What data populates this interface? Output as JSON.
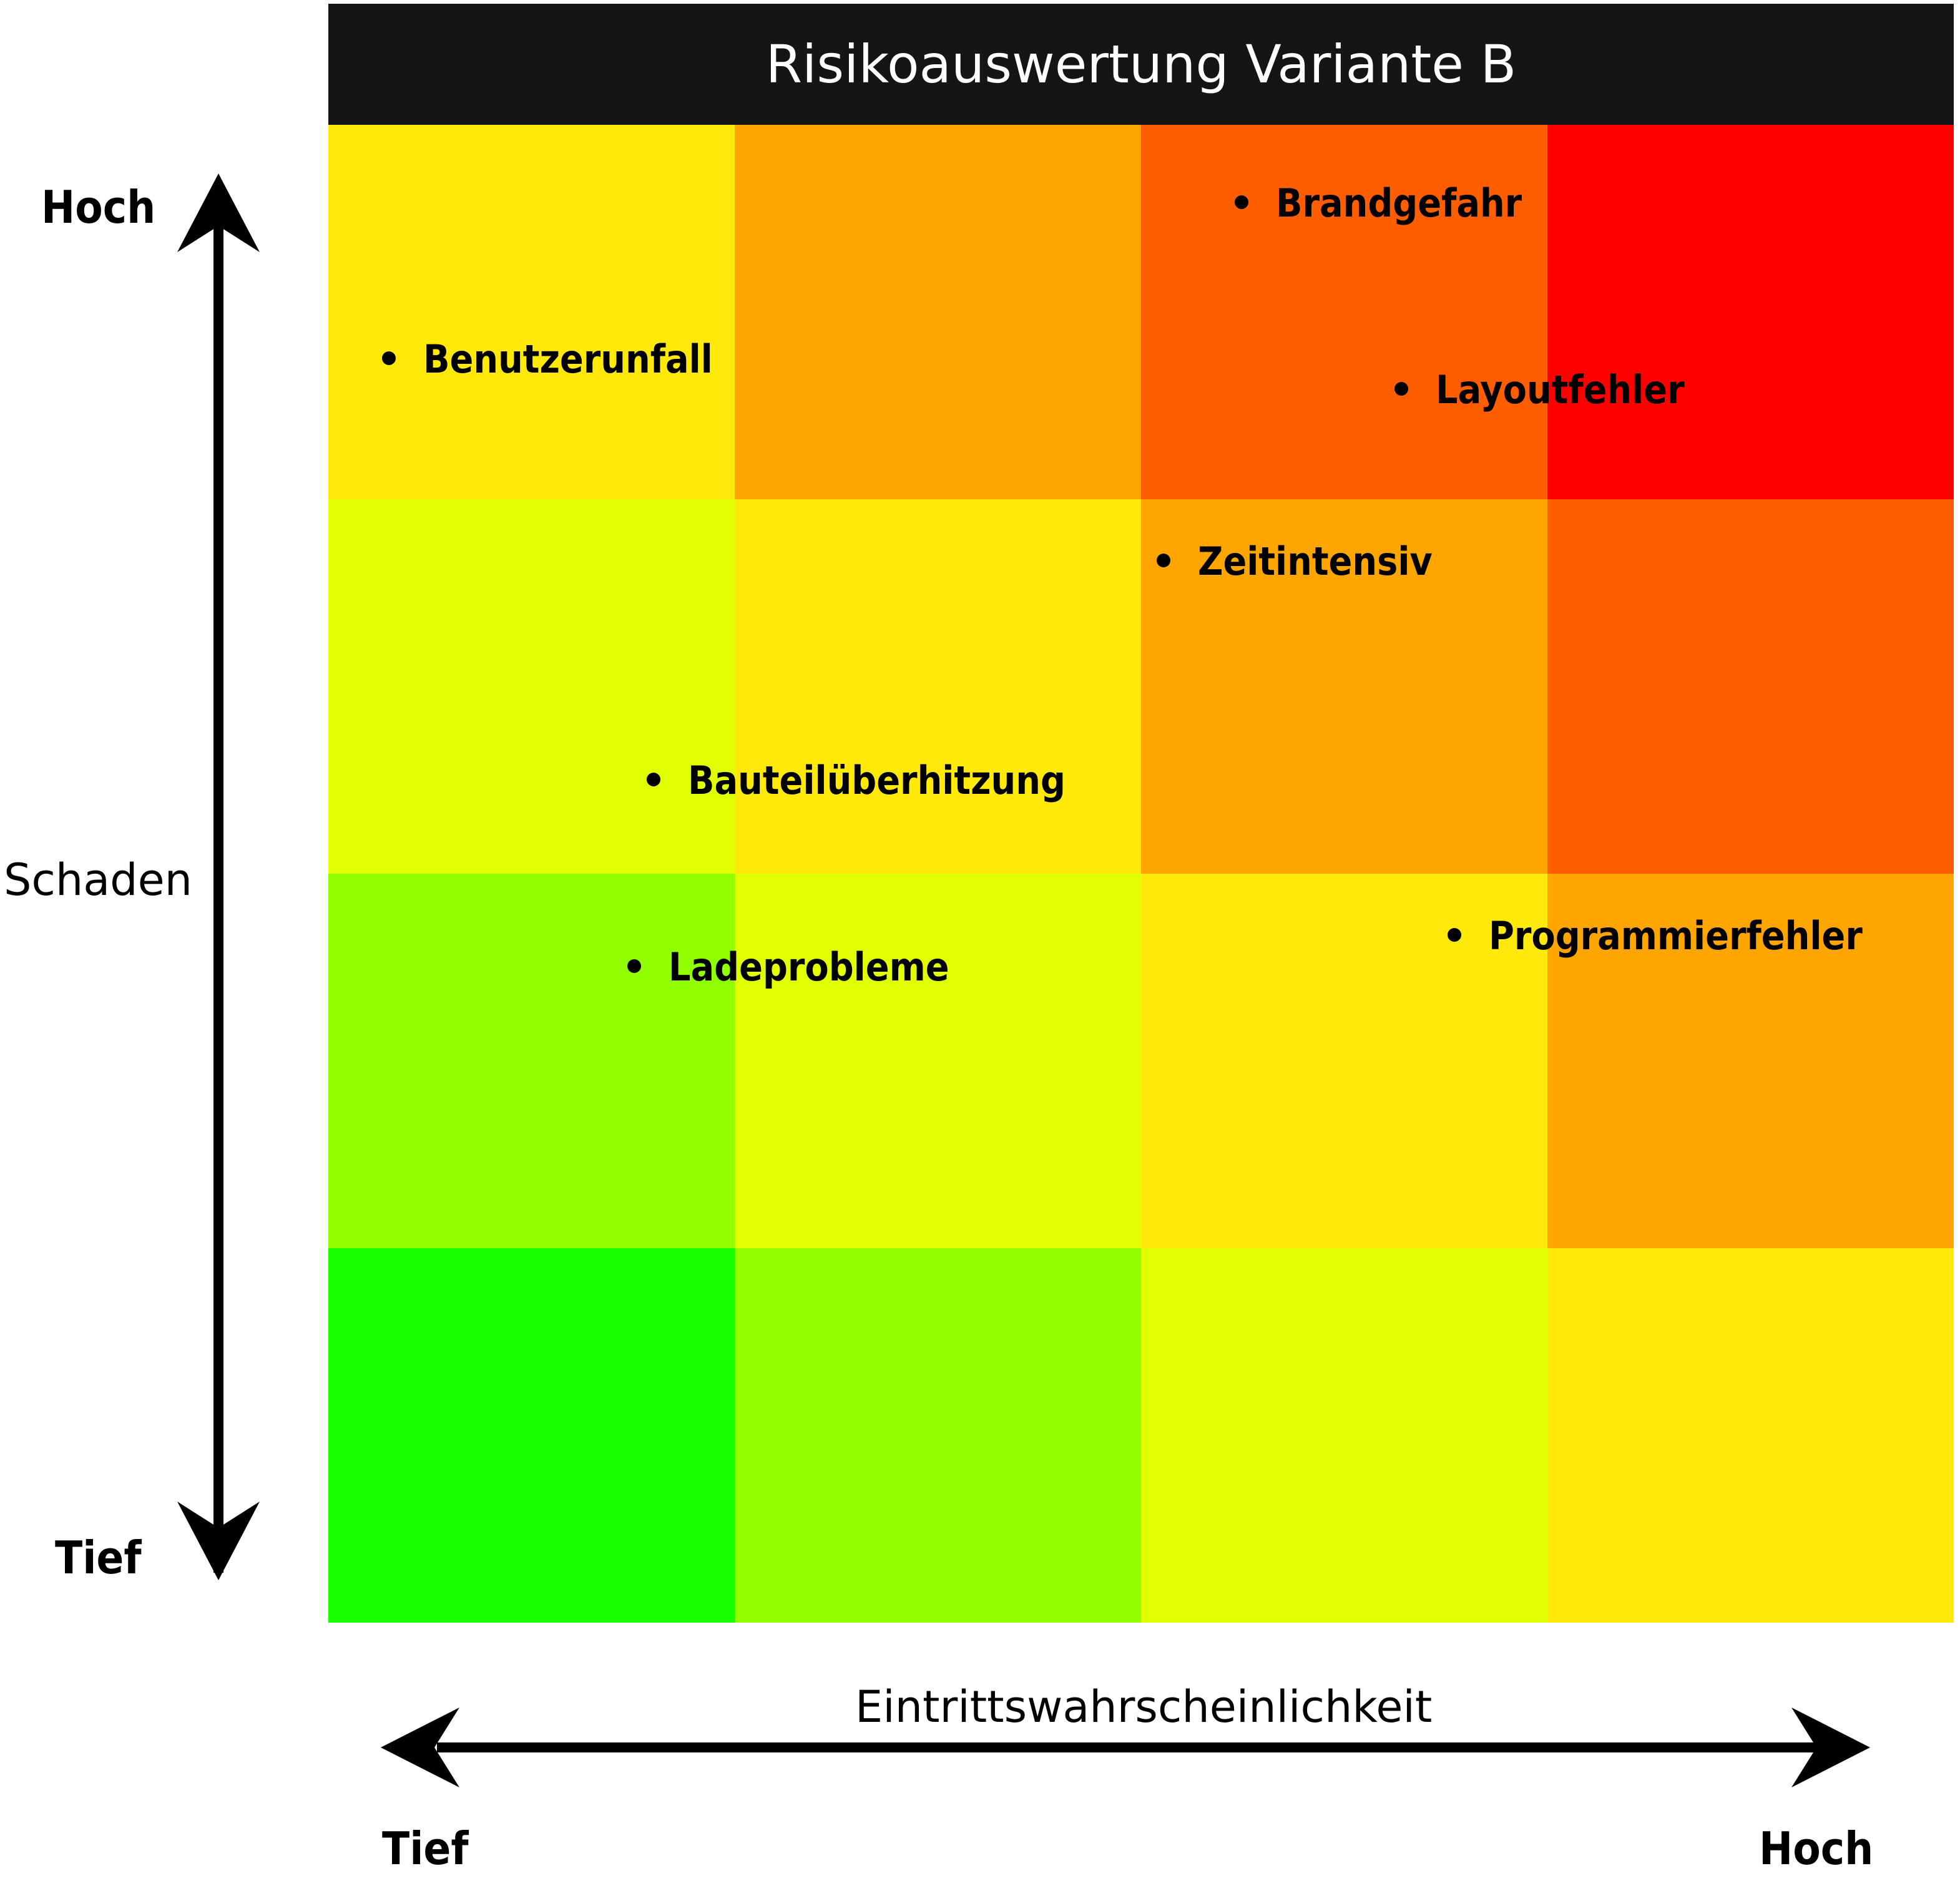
{
  "title": "Risikoauswertung Variante B",
  "y_axis": {
    "label": "Schaden",
    "high": "Hoch",
    "low": "Tief"
  },
  "x_axis": {
    "label": "Eintrittswahrscheinlichkeit",
    "low": "Tief",
    "high": "Hoch"
  },
  "matrix_colors": [
    [
      "#ffe90a",
      "#ffa500",
      "#ff5e00",
      "#ff0000"
    ],
    [
      "#e1ff00",
      "#ffe90a",
      "#ffa500",
      "#ff5e00"
    ],
    [
      "#92ff00",
      "#e1ff00",
      "#ffe90a",
      "#ffa500"
    ],
    [
      "#18ff00",
      "#92ff00",
      "#e1ff00",
      "#ffe90a"
    ]
  ],
  "risks": [
    {
      "label": "Brandgefahr"
    },
    {
      "label": "Benutzerunfall"
    },
    {
      "label": "Layoutfehler"
    },
    {
      "label": "Zeitintensiv"
    },
    {
      "label": "Bauteilüberhitzung"
    },
    {
      "label": "Ladeprobleme"
    },
    {
      "label": "Programmierfehler"
    }
  ]
}
